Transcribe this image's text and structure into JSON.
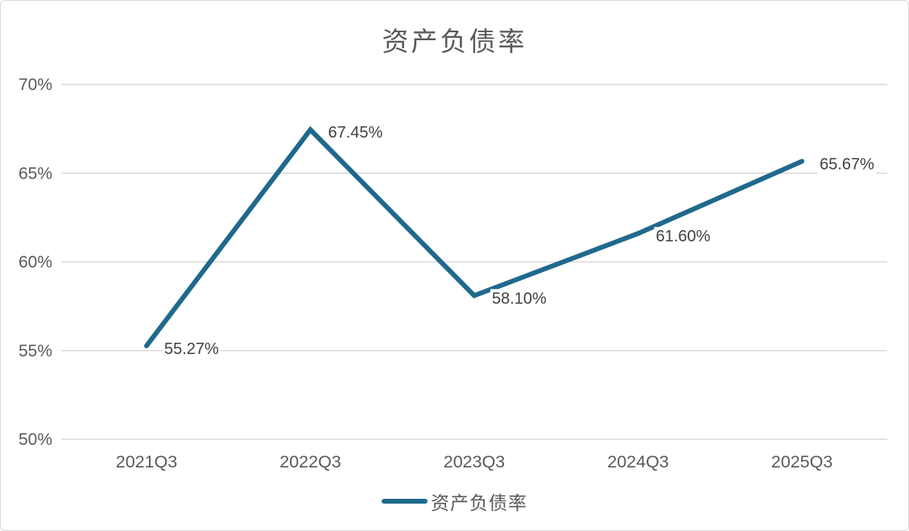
{
  "page": {
    "title": "资产负债率"
  },
  "legend": {
    "label": "资产负债率"
  },
  "colors": {
    "line": "#20698C",
    "grid": "#D9D9D9",
    "tick_text": "#595959",
    "data_label_text": "#404040",
    "title_text": "#595959",
    "card_border": "#D9D9D9",
    "background": "#FFFFFF"
  },
  "chart_data": {
    "type": "line",
    "title": "资产负债率",
    "categories": [
      "2021Q3",
      "2022Q3",
      "2023Q3",
      "2024Q3",
      "2025Q3"
    ],
    "values": [
      55.27,
      67.45,
      58.1,
      61.6,
      65.67
    ],
    "data_labels": [
      "55.27%",
      "67.45%",
      "58.10%",
      "61.60%",
      "65.67%"
    ],
    "ylim": [
      50,
      70
    ],
    "ytick_values": [
      70,
      65,
      60,
      55,
      50
    ],
    "ytick_labels": [
      "70%",
      "65%",
      "60%",
      "55%",
      "50%"
    ],
    "xlabel": "",
    "ylabel": "",
    "grid": true,
    "legend_position": "bottom",
    "legend_entries": [
      "资产负债率"
    ]
  }
}
